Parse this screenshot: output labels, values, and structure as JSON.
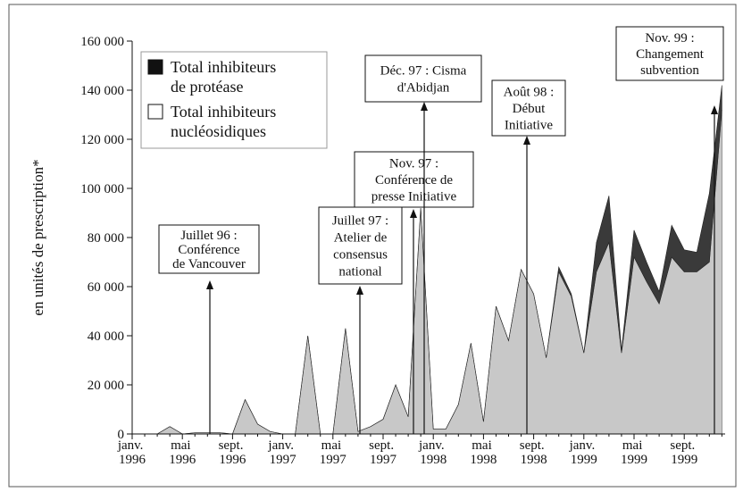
{
  "chart_data": {
    "type": "stacked-area",
    "y_label": "en unités de prescription*",
    "categories": [
      "janv. 1996",
      null,
      null,
      null,
      "mai 1996",
      null,
      null,
      null,
      "sept. 1996",
      null,
      null,
      null,
      "janv. 1997",
      null,
      null,
      null,
      "mai 1997",
      null,
      null,
      null,
      "sept. 1997",
      null,
      null,
      null,
      "janv. 1998",
      null,
      null,
      null,
      "mai 1998",
      null,
      null,
      null,
      "sept. 1998",
      null,
      null,
      null,
      "janv. 1999",
      null,
      null,
      null,
      "mai 1999",
      null,
      null,
      null,
      "sept. 1999",
      null,
      null,
      null
    ],
    "series": [
      {
        "name": "Total inhibiteurs de protéase",
        "color": "#3a3a3a",
        "values": [
          0,
          0,
          0,
          0,
          0,
          0,
          0,
          0,
          0,
          0,
          0,
          0,
          0,
          0,
          0,
          0,
          0,
          0,
          0,
          0,
          0,
          0,
          0,
          0,
          0,
          0,
          0,
          0,
          0,
          0,
          0,
          0,
          0,
          0,
          2000,
          1000,
          0,
          12000,
          19000,
          1000,
          11000,
          8000,
          5000,
          13000,
          9000,
          8000,
          28000,
          10000
        ]
      },
      {
        "name": "Total inhibiteurs nucléosidiques",
        "color": "#c8c8c8",
        "values": [
          0,
          0,
          0,
          3000,
          0,
          500,
          500,
          500,
          0,
          14000,
          4000,
          1000,
          0,
          0,
          40000,
          0,
          0,
          43000,
          1000,
          3000,
          6000,
          20000,
          7000,
          92000,
          2000,
          2000,
          12000,
          37000,
          5000,
          52000,
          38000,
          67000,
          57000,
          31000,
          66000,
          56000,
          33000,
          66000,
          78000,
          33000,
          72000,
          62000,
          53000,
          72000,
          66000,
          66000,
          70000,
          132000
        ]
      }
    ],
    "ylim": [
      0,
      160000
    ],
    "yticks": [
      0,
      {
        "value": 20000,
        "label": "20 000"
      },
      {
        "value": 40000,
        "label": "40 000"
      },
      {
        "value": 60000,
        "label": "60 000"
      },
      {
        "value": 80000,
        "label": "80 000"
      },
      {
        "value": 100000,
        "label": "100 000"
      },
      {
        "value": 120000,
        "label": "120 000"
      },
      {
        "value": 140000,
        "label": "140 000"
      },
      {
        "value": 160000,
        "label": "160 000"
      }
    ],
    "annotations": [
      {
        "lines": [
          "Juillet 96 :",
          "Conférence",
          "de Vancouver"
        ]
      },
      {
        "lines": [
          "Juillet 97 :",
          "Atelier de",
          "consensus",
          "national"
        ]
      },
      {
        "lines": [
          "Nov. 97 :",
          "Conférence de",
          "presse Initiative"
        ]
      },
      {
        "lines": [
          "Déc. 97 : Cisma",
          "d'Abidjan"
        ]
      },
      {
        "lines": [
          "Août 98 :",
          "Début",
          "Initiative"
        ]
      },
      {
        "lines": [
          "Nov. 99 :",
          "Changement",
          "subvention"
        ]
      }
    ]
  }
}
